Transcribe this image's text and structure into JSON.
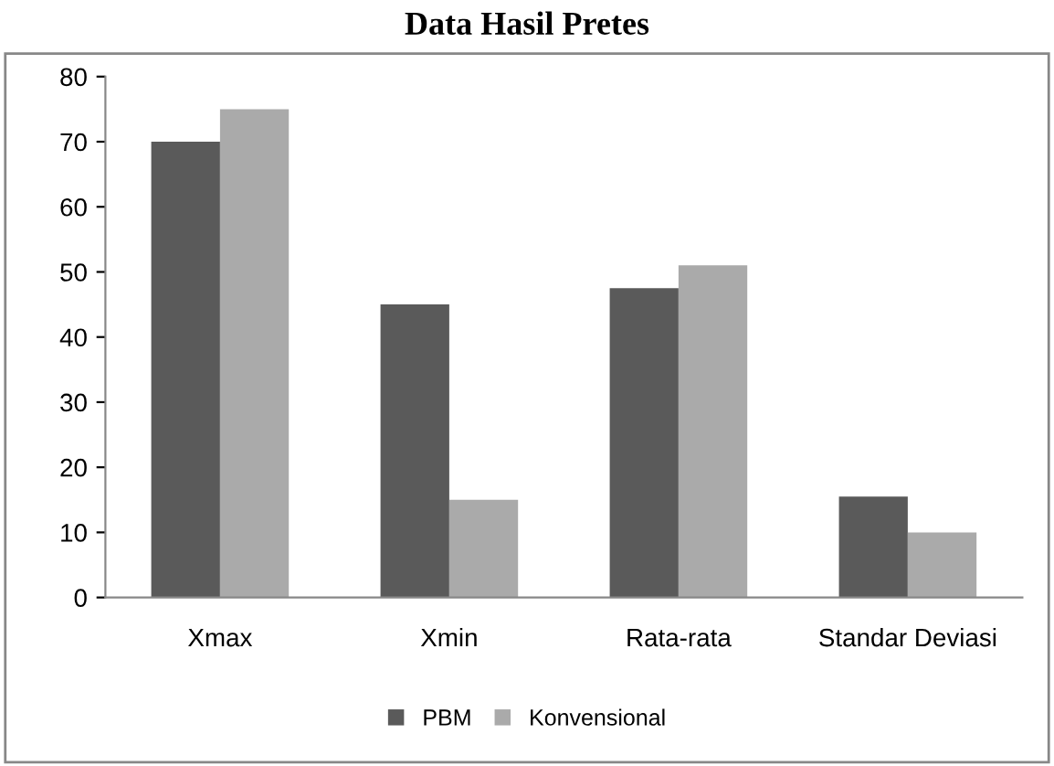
{
  "chart_data": {
    "type": "bar",
    "title": "Data Hasil Pretes",
    "categories": [
      "Xmax",
      "Xmin",
      "Rata-rata",
      "Standar Deviasi"
    ],
    "series": [
      {
        "name": "PBM",
        "color": "#5a5a5a",
        "values": [
          70,
          45,
          47.5,
          15.5
        ]
      },
      {
        "name": "Konvensional",
        "color": "#aaaaaa",
        "values": [
          75,
          15,
          51,
          10
        ]
      }
    ],
    "ylim": [
      0,
      80
    ],
    "yticks": [
      0,
      10,
      20,
      30,
      40,
      50,
      60,
      70,
      80
    ],
    "grid": false,
    "legend": "bottom"
  }
}
